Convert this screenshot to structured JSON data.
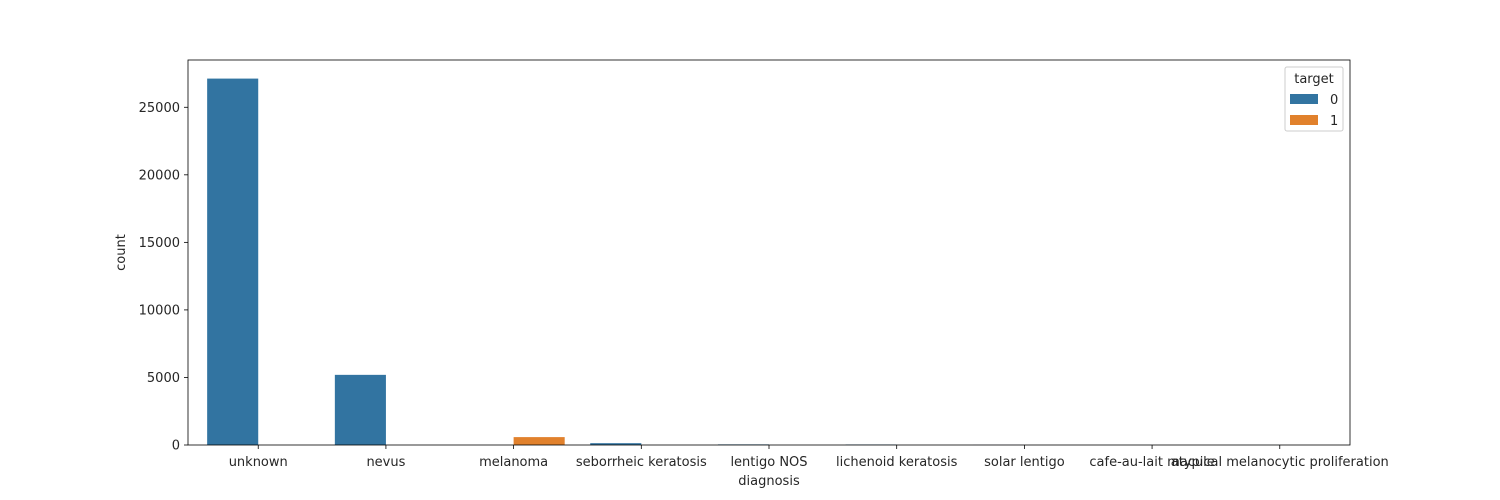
{
  "chart_data": {
    "type": "bar",
    "xlabel": "diagnosis",
    "ylabel": "count",
    "ylim": [
      0,
      28500
    ],
    "yticks": [
      0,
      5000,
      10000,
      15000,
      20000,
      25000
    ],
    "categories": [
      "unknown",
      "nevus",
      "melanoma",
      "seborrheic keratosis",
      "lentigo NOS",
      "lichenoid keratosis",
      "solar lentigo",
      "cafe-au-lait macule",
      "atypical melanocytic proliferation"
    ],
    "legend": {
      "title": "target",
      "position": "top-right"
    },
    "series": [
      {
        "name": "0",
        "color": "#3274a1",
        "values": [
          27124,
          5193,
          0,
          135,
          44,
          37,
          7,
          1,
          1
        ]
      },
      {
        "name": "1",
        "color": "#e1812c",
        "values": [
          0,
          0,
          584,
          0,
          0,
          0,
          0,
          0,
          0
        ]
      }
    ]
  }
}
